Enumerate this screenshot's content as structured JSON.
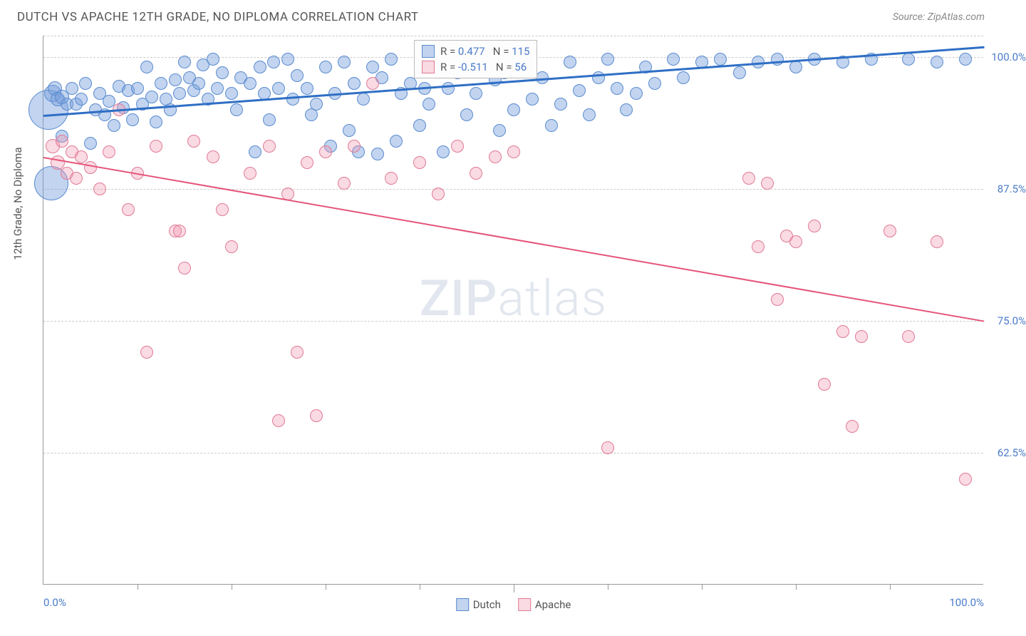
{
  "header": {
    "title": "DUTCH VS APACHE 12TH GRADE, NO DIPLOMA CORRELATION CHART",
    "source": "Source: ZipAtlas.com"
  },
  "chart": {
    "type": "scatter",
    "ylabel": "12th Grade, No Diploma",
    "xlim": [
      0,
      100
    ],
    "ylim": [
      50,
      102
    ],
    "xtick_labels": {
      "0": "0.0%",
      "100": "100.0%"
    },
    "xticks_minor": [
      10,
      20,
      30,
      40,
      50,
      60,
      70,
      80,
      90
    ],
    "ytick_labels": {
      "62.5": "62.5%",
      "75": "75.0%",
      "87.5": "87.5%",
      "100": "100.0%"
    },
    "gridlines_y": [
      62.5,
      75,
      87.5,
      100,
      102
    ],
    "background_color": "#ffffff",
    "grid_color": "#cccccc",
    "axis_color": "#999999",
    "tick_label_color": "#4a7bc8",
    "watermark": {
      "text_bold": "ZIP",
      "text_light": "atlas"
    },
    "series": [
      {
        "name": "Dutch",
        "fill_color": "rgba(120,160,220,0.45)",
        "stroke_color": "#5a8bd0",
        "line_color": "#2f6fc5",
        "line_width": 2.5,
        "trend": {
          "x1": 0,
          "y1": 94.5,
          "x2": 100,
          "y2": 101
        },
        "legend": {
          "r_label": "R =",
          "r_value": "0.477",
          "n_label": "N =",
          "n_value": "115"
        },
        "marker_base_r": 9,
        "points": [
          [
            0.5,
            95,
            28
          ],
          [
            0.8,
            88,
            24
          ],
          [
            1,
            96.5,
            12
          ],
          [
            1.2,
            97,
            10
          ],
          [
            1.5,
            96,
            10
          ],
          [
            2,
            96.2,
            10
          ],
          [
            2,
            92.5,
            9
          ],
          [
            2.5,
            95.5,
            9
          ],
          [
            3,
            97,
            9
          ],
          [
            3.5,
            95.5,
            9
          ],
          [
            4,
            96,
            9
          ],
          [
            4.5,
            97.5,
            9
          ],
          [
            5,
            91.8,
            9
          ],
          [
            5.5,
            95,
            9
          ],
          [
            6,
            96.5,
            9
          ],
          [
            6.5,
            94.5,
            9
          ],
          [
            7,
            95.8,
            9
          ],
          [
            7.5,
            93.5,
            9
          ],
          [
            8,
            97.2,
            9
          ],
          [
            8.5,
            95.2,
            9
          ],
          [
            9,
            96.8,
            9
          ],
          [
            9.5,
            94,
            9
          ],
          [
            10,
            97,
            9
          ],
          [
            10.5,
            95.5,
            9
          ],
          [
            11,
            99,
            9
          ],
          [
            11.5,
            96.2,
            9
          ],
          [
            12,
            93.8,
            9
          ],
          [
            12.5,
            97.5,
            9
          ],
          [
            13,
            96,
            9
          ],
          [
            13.5,
            95,
            9
          ],
          [
            14,
            97.8,
            9
          ],
          [
            14.5,
            96.5,
            9
          ],
          [
            15,
            99.5,
            9
          ],
          [
            15.5,
            98,
            9
          ],
          [
            16,
            96.8,
            9
          ],
          [
            16.5,
            97.5,
            9
          ],
          [
            17,
            99.2,
            9
          ],
          [
            17.5,
            96,
            9
          ],
          [
            18,
            99.8,
            9
          ],
          [
            18.5,
            97,
            9
          ],
          [
            19,
            98.5,
            9
          ],
          [
            20,
            96.5,
            9
          ],
          [
            20.5,
            95,
            9
          ],
          [
            21,
            98,
            9
          ],
          [
            22,
            97.5,
            9
          ],
          [
            22.5,
            91,
            9
          ],
          [
            23,
            99,
            9
          ],
          [
            23.5,
            96.5,
            9
          ],
          [
            24,
            94,
            9
          ],
          [
            24.5,
            99.5,
            9
          ],
          [
            25,
            97,
            9
          ],
          [
            26,
            99.8,
            9
          ],
          [
            26.5,
            96,
            9
          ],
          [
            27,
            98.2,
            9
          ],
          [
            28,
            97,
            9
          ],
          [
            28.5,
            94.5,
            9
          ],
          [
            29,
            95.5,
            9
          ],
          [
            30,
            99,
            9
          ],
          [
            30.5,
            91.5,
            9
          ],
          [
            31,
            96.5,
            9
          ],
          [
            32,
            99.5,
            9
          ],
          [
            32.5,
            93,
            9
          ],
          [
            33,
            97.5,
            9
          ],
          [
            33.5,
            91,
            9
          ],
          [
            34,
            96,
            9
          ],
          [
            35,
            99,
            9
          ],
          [
            35.5,
            90.8,
            9
          ],
          [
            36,
            98,
            9
          ],
          [
            37,
            99.8,
            9
          ],
          [
            37.5,
            92,
            9
          ],
          [
            38,
            96.5,
            9
          ],
          [
            39,
            97.5,
            9
          ],
          [
            40,
            93.5,
            9
          ],
          [
            40.5,
            97,
            9
          ],
          [
            41,
            95.5,
            9
          ],
          [
            42,
            99.5,
            9
          ],
          [
            42.5,
            91,
            9
          ],
          [
            43,
            97,
            9
          ],
          [
            44,
            98.5,
            9
          ],
          [
            45,
            94.5,
            9
          ],
          [
            46,
            96.5,
            9
          ],
          [
            47,
            99.2,
            9
          ],
          [
            48,
            97.8,
            9
          ],
          [
            48.5,
            93,
            9
          ],
          [
            49,
            98.5,
            9
          ],
          [
            50,
            95,
            9
          ],
          [
            51,
            99,
            9
          ],
          [
            52,
            96,
            9
          ],
          [
            53,
            98,
            9
          ],
          [
            54,
            93.5,
            9
          ],
          [
            55,
            95.5,
            9
          ],
          [
            56,
            99.5,
            9
          ],
          [
            57,
            96.8,
            9
          ],
          [
            58,
            94.5,
            9
          ],
          [
            59,
            98,
            9
          ],
          [
            60,
            99.8,
            9
          ],
          [
            61,
            97,
            9
          ],
          [
            62,
            95,
            9
          ],
          [
            63,
            96.5,
            9
          ],
          [
            64,
            99,
            9
          ],
          [
            65,
            97.5,
            9
          ],
          [
            67,
            99.8,
            9
          ],
          [
            68,
            98,
            9
          ],
          [
            70,
            99.5,
            9
          ],
          [
            72,
            99.8,
            9
          ],
          [
            74,
            98.5,
            9
          ],
          [
            76,
            99.5,
            9
          ],
          [
            78,
            99.8,
            9
          ],
          [
            80,
            99,
            9
          ],
          [
            82,
            99.8,
            9
          ],
          [
            85,
            99.5,
            9
          ],
          [
            88,
            99.8,
            9
          ],
          [
            92,
            99.8,
            9
          ],
          [
            95,
            99.5,
            9
          ],
          [
            98,
            99.8,
            9
          ]
        ]
      },
      {
        "name": "Apache",
        "fill_color": "rgba(240,150,175,0.35)",
        "stroke_color": "#e07a95",
        "line_color": "#e5557a",
        "line_width": 2,
        "trend": {
          "x1": 0,
          "y1": 90.5,
          "x2": 100,
          "y2": 75
        },
        "legend": {
          "r_label": "R =",
          "r_value": "-0.511",
          "n_label": "N =",
          "n_value": "56"
        },
        "marker_base_r": 9,
        "points": [
          [
            1,
            91.5,
            10
          ],
          [
            1.5,
            90,
            10
          ],
          [
            2,
            92,
            9
          ],
          [
            2.5,
            89,
            9
          ],
          [
            3,
            91,
            9
          ],
          [
            3.5,
            88.5,
            9
          ],
          [
            4,
            90.5,
            9
          ],
          [
            5,
            89.5,
            9
          ],
          [
            6,
            87.5,
            9
          ],
          [
            7,
            91,
            9
          ],
          [
            8,
            95,
            9
          ],
          [
            9,
            85.5,
            9
          ],
          [
            10,
            89,
            9
          ],
          [
            11,
            72,
            9
          ],
          [
            12,
            91.5,
            9
          ],
          [
            14,
            83.5,
            9
          ],
          [
            14.5,
            83.5,
            9
          ],
          [
            15,
            80,
            9
          ],
          [
            16,
            92,
            9
          ],
          [
            18,
            90.5,
            9
          ],
          [
            19,
            85.5,
            9
          ],
          [
            20,
            82,
            9
          ],
          [
            22,
            89,
            9
          ],
          [
            24,
            91.5,
            9
          ],
          [
            25,
            65.5,
            9
          ],
          [
            26,
            87,
            9
          ],
          [
            27,
            72,
            9
          ],
          [
            28,
            90,
            9
          ],
          [
            29,
            66,
            9
          ],
          [
            30,
            91,
            9
          ],
          [
            32,
            88,
            9
          ],
          [
            33,
            91.5,
            9
          ],
          [
            35,
            97.5,
            9
          ],
          [
            37,
            88.5,
            9
          ],
          [
            40,
            90,
            9
          ],
          [
            42,
            87,
            9
          ],
          [
            44,
            91.5,
            9
          ],
          [
            46,
            89,
            9
          ],
          [
            48,
            90.5,
            9
          ],
          [
            50,
            91,
            9
          ],
          [
            60,
            63,
            9
          ],
          [
            75,
            88.5,
            9
          ],
          [
            76,
            82,
            9
          ],
          [
            77,
            88,
            9
          ],
          [
            78,
            77,
            9
          ],
          [
            79,
            83,
            9
          ],
          [
            80,
            82.5,
            9
          ],
          [
            82,
            84,
            9
          ],
          [
            83,
            69,
            9
          ],
          [
            85,
            74,
            9
          ],
          [
            86,
            65,
            9
          ],
          [
            87,
            73.5,
            9
          ],
          [
            90,
            83.5,
            9
          ],
          [
            92,
            73.5,
            9
          ],
          [
            95,
            82.5,
            9
          ],
          [
            98,
            60,
            9
          ]
        ]
      }
    ],
    "bottom_legend": [
      {
        "label": "Dutch",
        "fill": "rgba(120,160,220,0.45)",
        "stroke": "#5a8bd0"
      },
      {
        "label": "Apache",
        "fill": "rgba(240,150,175,0.35)",
        "stroke": "#e07a95"
      }
    ]
  }
}
